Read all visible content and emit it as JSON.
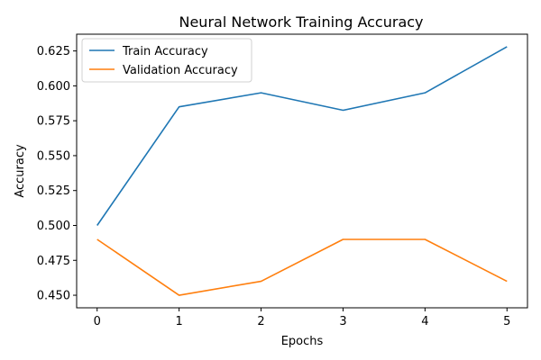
{
  "chart_data": {
    "type": "line",
    "title": "Neural Network Training Accuracy",
    "xlabel": "Epochs",
    "ylabel": "Accuracy",
    "x": [
      0,
      1,
      2,
      3,
      4,
      5
    ],
    "xticks": [
      "0",
      "1",
      "2",
      "3",
      "4",
      "5"
    ],
    "yticks": [
      "0.450",
      "0.475",
      "0.500",
      "0.525",
      "0.550",
      "0.575",
      "0.600",
      "0.625"
    ],
    "ytick_values": [
      0.45,
      0.475,
      0.5,
      0.525,
      0.55,
      0.575,
      0.6,
      0.625
    ],
    "xlim": [
      -0.25,
      5.25
    ],
    "ylim": [
      0.441,
      0.637
    ],
    "grid": false,
    "legend_position": "top-left",
    "series": [
      {
        "name": "Train Accuracy",
        "color": "#1f77b4",
        "values": [
          0.5,
          0.585,
          0.595,
          0.5825,
          0.595,
          0.628
        ]
      },
      {
        "name": "Validation Accuracy",
        "color": "#ff7f0e",
        "values": [
          0.49,
          0.45,
          0.46,
          0.49,
          0.49,
          0.46
        ]
      }
    ]
  }
}
